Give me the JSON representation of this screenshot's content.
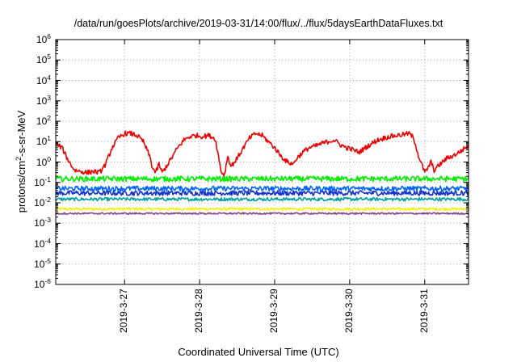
{
  "chart_data": {
    "type": "line",
    "title": "/data/run/goesPlots/archive/2019-03-31/14:00/flux/../flux/5daysEarthDataFluxes.txt",
    "xlabel": "Coordinated Universal Time (UTC)",
    "ylabel_base": "protons/cm",
    "ylabel_sup": "2",
    "ylabel_rest": "-s-sr-MeV",
    "y_scale": "log",
    "ylim": [
      1e-06,
      1000000.0
    ],
    "yticks": [
      {
        "base": "10",
        "exp": "-6",
        "value": 1e-06
      },
      {
        "base": "10",
        "exp": "-5",
        "value": 1e-05
      },
      {
        "base": "10",
        "exp": "-4",
        "value": 0.0001
      },
      {
        "base": "10",
        "exp": "-3",
        "value": 0.001
      },
      {
        "base": "10",
        "exp": "-2",
        "value": 0.01
      },
      {
        "base": "10",
        "exp": "-1",
        "value": 0.1
      },
      {
        "base": "10",
        "exp": "0",
        "value": 1
      },
      {
        "base": "10",
        "exp": "1",
        "value": 10
      },
      {
        "base": "10",
        "exp": "2",
        "value": 100
      },
      {
        "base": "10",
        "exp": "3",
        "value": 1000
      },
      {
        "base": "10",
        "exp": "4",
        "value": 10000
      },
      {
        "base": "10",
        "exp": "5",
        "value": 100000
      },
      {
        "base": "10",
        "exp": "6",
        "value": 1000000
      }
    ],
    "xlim": [
      "2019-03-26 02:00",
      "2019-03-31 14:00"
    ],
    "xticks": [
      {
        "label": "2019-3-27",
        "value": "2019-03-27 00:00"
      },
      {
        "label": "2019-3-28",
        "value": "2019-03-28 00:00"
      },
      {
        "label": "2019-3-29",
        "value": "2019-03-29 00:00"
      },
      {
        "label": "2019-3-30",
        "value": "2019-03-30 00:00"
      },
      {
        "label": "2019-3-31",
        "value": "2019-03-31 00:00"
      }
    ],
    "grid": true,
    "legend": "none",
    "series": [
      {
        "color": "#ee0000",
        "noise": 0.12,
        "points": [
          [
            "2019-03-26 02:00",
            8
          ],
          [
            "2019-03-26 04:00",
            5
          ],
          [
            "2019-03-26 06:00",
            1.2
          ],
          [
            "2019-03-26 08:00",
            0.4
          ],
          [
            "2019-03-26 12:00",
            0.3
          ],
          [
            "2019-03-26 14:00",
            0.35
          ],
          [
            "2019-03-26 16:00",
            0.3
          ],
          [
            "2019-03-26 18:00",
            0.8
          ],
          [
            "2019-03-26 20:00",
            5
          ],
          [
            "2019-03-26 22:00",
            15
          ],
          [
            "2019-03-27 00:00",
            25
          ],
          [
            "2019-03-27 02:00",
            25
          ],
          [
            "2019-03-27 04:00",
            20
          ],
          [
            "2019-03-27 06:00",
            10
          ],
          [
            "2019-03-27 08:00",
            2
          ],
          [
            "2019-03-27 09:00",
            0.5
          ],
          [
            "2019-03-27 10:00",
            0.3
          ],
          [
            "2019-03-27 11:00",
            0.8
          ],
          [
            "2019-03-27 12:00",
            0.3
          ],
          [
            "2019-03-27 13:00",
            0.5
          ],
          [
            "2019-03-27 15:00",
            1.5
          ],
          [
            "2019-03-27 17:00",
            5
          ],
          [
            "2019-03-27 19:00",
            12
          ],
          [
            "2019-03-27 21:00",
            18
          ],
          [
            "2019-03-27 23:00",
            20
          ],
          [
            "2019-03-28 01:00",
            18
          ],
          [
            "2019-03-28 03:00",
            20
          ],
          [
            "2019-03-28 05:00",
            14
          ],
          [
            "2019-03-28 06:00",
            2
          ],
          [
            "2019-03-28 07:00",
            0.3
          ],
          [
            "2019-03-28 08:00",
            0.25
          ],
          [
            "2019-03-28 09:00",
            2
          ],
          [
            "2019-03-28 10:00",
            0.6
          ],
          [
            "2019-03-28 12:00",
            1.5
          ],
          [
            "2019-03-28 14:00",
            5
          ],
          [
            "2019-03-28 16:00",
            15
          ],
          [
            "2019-03-28 18:00",
            25
          ],
          [
            "2019-03-28 20:00",
            20
          ],
          [
            "2019-03-28 22:00",
            10
          ],
          [
            "2019-03-29 00:00",
            5
          ],
          [
            "2019-03-29 02:00",
            2
          ],
          [
            "2019-03-29 04:00",
            1
          ],
          [
            "2019-03-29 06:00",
            0.8
          ],
          [
            "2019-03-29 07:00",
            1.5
          ],
          [
            "2019-03-29 09:00",
            3
          ],
          [
            "2019-03-29 11:00",
            5
          ],
          [
            "2019-03-29 13:00",
            6
          ],
          [
            "2019-03-29 15:00",
            8
          ],
          [
            "2019-03-29 17:00",
            10
          ],
          [
            "2019-03-29 19:00",
            12
          ],
          [
            "2019-03-29 21:00",
            7
          ],
          [
            "2019-03-29 23:00",
            5
          ],
          [
            "2019-03-30 01:00",
            4
          ],
          [
            "2019-03-30 03:00",
            3
          ],
          [
            "2019-03-30 05:00",
            5
          ],
          [
            "2019-03-30 07:00",
            8
          ],
          [
            "2019-03-30 09:00",
            12
          ],
          [
            "2019-03-30 11:00",
            15
          ],
          [
            "2019-03-30 13:00",
            18
          ],
          [
            "2019-03-30 15:00",
            20
          ],
          [
            "2019-03-30 17:00",
            22
          ],
          [
            "2019-03-30 19:00",
            25
          ],
          [
            "2019-03-30 20:00",
            18
          ],
          [
            "2019-03-30 21:00",
            8
          ],
          [
            "2019-03-30 22:00",
            2
          ],
          [
            "2019-03-30 23:00",
            0.8
          ],
          [
            "2019-03-31 00:00",
            0.3
          ],
          [
            "2019-03-31 01:00",
            0.5
          ],
          [
            "2019-03-31 02:00",
            1
          ],
          [
            "2019-03-31 03:00",
            0.4
          ],
          [
            "2019-03-31 05:00",
            0.8
          ],
          [
            "2019-03-31 07:00",
            1.5
          ],
          [
            "2019-03-31 09:00",
            2
          ],
          [
            "2019-03-31 11:00",
            3
          ],
          [
            "2019-03-31 13:00",
            5
          ],
          [
            "2019-03-31 14:00",
            6
          ]
        ]
      },
      {
        "color": "#00ee00",
        "noise": 0.13,
        "points": [
          [
            "2019-03-26 02:00",
            0.15
          ],
          [
            "2019-03-31 14:00",
            0.15
          ]
        ]
      },
      {
        "color": "#0066ff",
        "noise": 0.12,
        "points": [
          [
            "2019-03-26 02:00",
            0.05
          ],
          [
            "2019-03-31 14:00",
            0.05
          ]
        ]
      },
      {
        "color": "#1a33cc",
        "noise": 0.12,
        "points": [
          [
            "2019-03-26 02:00",
            0.03
          ],
          [
            "2019-03-31 14:00",
            0.03
          ]
        ]
      },
      {
        "color": "#00a0a0",
        "noise": 0.08,
        "points": [
          [
            "2019-03-26 02:00",
            0.015
          ],
          [
            "2019-03-31 14:00",
            0.015
          ]
        ]
      },
      {
        "color": "#f2f200",
        "noise": 0.06,
        "points": [
          [
            "2019-03-26 02:00",
            0.005
          ],
          [
            "2019-03-31 14:00",
            0.005
          ]
        ]
      },
      {
        "color": "#884488",
        "noise": 0.04,
        "points": [
          [
            "2019-03-26 02:00",
            0.003
          ],
          [
            "2019-03-31 14:00",
            0.003
          ]
        ]
      }
    ]
  }
}
